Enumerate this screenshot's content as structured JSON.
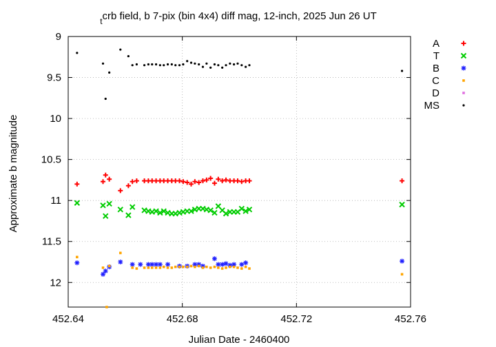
{
  "chart_data": {
    "type": "scatter",
    "title_sub": "t",
    "title_main": "crb field, b 7-pix (bin 4x4) diff mag, 12-inch, 2025 Jun 26 UT",
    "xlabel": "Julian Date - 2460400",
    "ylabel": "Approximate b magnitude",
    "xlim": [
      452.64,
      452.76
    ],
    "ylim": [
      12.3,
      9.0
    ],
    "y_inverted": true,
    "x_ticks": [
      "452.64",
      "452.68",
      "452.72",
      "452.76"
    ],
    "y_ticks": [
      "9",
      "9.5",
      "10",
      "10.5",
      "11",
      "11.5",
      "12"
    ],
    "grid": true,
    "legend_position": "outside-right",
    "series": [
      {
        "name": "A",
        "marker": "plus",
        "color": "#ff0000",
        "x": [
          452.6431,
          452.6522,
          452.6531,
          452.6544,
          452.6583,
          452.6611,
          452.6625,
          452.664,
          452.6667,
          452.6681,
          452.6694,
          452.6708,
          452.6722,
          452.6735,
          452.6749,
          452.6763,
          452.6776,
          452.679,
          452.6803,
          452.6817,
          452.6831,
          452.6844,
          452.6858,
          452.6872,
          452.6885,
          452.6899,
          452.6913,
          452.6926,
          452.694,
          452.6953,
          452.6967,
          452.6981,
          452.6994,
          452.7008,
          452.7022,
          452.7035,
          452.757
        ],
        "y": [
          10.8,
          10.77,
          10.69,
          10.74,
          10.88,
          10.82,
          10.77,
          10.76,
          10.76,
          10.76,
          10.76,
          10.76,
          10.76,
          10.76,
          10.76,
          10.76,
          10.76,
          10.76,
          10.77,
          10.78,
          10.8,
          10.77,
          10.78,
          10.76,
          10.75,
          10.73,
          10.79,
          10.74,
          10.76,
          10.75,
          10.76,
          10.76,
          10.76,
          10.77,
          10.76,
          10.76,
          10.76
        ]
      },
      {
        "name": "T",
        "marker": "cross",
        "color": "#00cc00",
        "x": [
          452.6431,
          452.6522,
          452.6531,
          452.6544,
          452.6583,
          452.6611,
          452.6625,
          452.6667,
          452.6681,
          452.6694,
          452.6708,
          452.6722,
          452.6735,
          452.6749,
          452.6763,
          452.6776,
          452.679,
          452.6803,
          452.6817,
          452.6831,
          452.6844,
          452.6858,
          452.6872,
          452.6885,
          452.6899,
          452.6913,
          452.6926,
          452.694,
          452.6953,
          452.6967,
          452.6981,
          452.6994,
          452.7008,
          452.7022,
          452.7035,
          452.757
        ],
        "y": [
          11.03,
          11.06,
          11.19,
          11.04,
          11.11,
          11.18,
          11.08,
          11.12,
          11.13,
          11.14,
          11.13,
          11.15,
          11.13,
          11.15,
          11.16,
          11.16,
          11.15,
          11.14,
          11.13,
          11.13,
          11.11,
          11.1,
          11.1,
          11.11,
          11.12,
          11.15,
          11.07,
          11.12,
          11.16,
          11.14,
          11.14,
          11.14,
          11.1,
          11.13,
          11.11,
          11.05
        ]
      },
      {
        "name": "B",
        "marker": "star",
        "color": "#2020ff",
        "x": [
          452.6431,
          452.6522,
          452.6531,
          452.6544,
          452.6583,
          452.6625,
          452.6653,
          452.6681,
          452.6694,
          452.6708,
          452.6722,
          452.6749,
          452.679,
          452.6817,
          452.6844,
          452.6858,
          452.6872,
          452.6913,
          452.6926,
          452.694,
          452.6953,
          452.6967,
          452.6981,
          452.7008,
          452.7022,
          452.757
        ],
        "y": [
          11.76,
          11.9,
          11.86,
          11.81,
          11.75,
          11.78,
          11.78,
          11.78,
          11.78,
          11.78,
          11.78,
          11.78,
          11.8,
          11.8,
          11.78,
          11.78,
          11.8,
          11.71,
          11.78,
          11.78,
          11.77,
          11.79,
          11.78,
          11.78,
          11.76,
          11.74
        ]
      },
      {
        "name": "C",
        "marker": "square",
        "color": "#ffa500",
        "x": [
          452.6431,
          452.6522,
          452.6535,
          452.6544,
          452.6583,
          452.6625,
          452.664,
          452.6667,
          452.6681,
          452.6694,
          452.6708,
          452.6722,
          452.6735,
          452.6749,
          452.6763,
          452.6776,
          452.679,
          452.6803,
          452.6817,
          452.6831,
          452.6844,
          452.6858,
          452.6872,
          452.6885,
          452.6899,
          452.6913,
          452.6926,
          452.694,
          452.6953,
          452.6967,
          452.6981,
          452.6994,
          452.7008,
          452.7022,
          452.7035,
          452.757
        ],
        "y": [
          11.69,
          11.82,
          12.3,
          11.8,
          11.64,
          11.82,
          11.83,
          11.82,
          11.82,
          11.82,
          11.82,
          11.82,
          11.81,
          11.82,
          11.82,
          11.81,
          11.81,
          11.81,
          11.81,
          11.8,
          11.81,
          11.8,
          11.82,
          11.81,
          11.82,
          11.81,
          11.82,
          11.83,
          11.82,
          11.81,
          11.81,
          11.82,
          11.83,
          11.81,
          11.83,
          11.9
        ]
      },
      {
        "name": "D",
        "marker": "square",
        "color": "#e070e0",
        "x": [],
        "y": []
      },
      {
        "name": "MS",
        "marker": "dot",
        "color": "#000000",
        "x": [
          452.6431,
          452.6522,
          452.6531,
          452.6544,
          452.6583,
          452.6611,
          452.6625,
          452.664,
          452.6667,
          452.6681,
          452.6694,
          452.6708,
          452.6722,
          452.6735,
          452.6749,
          452.6763,
          452.6776,
          452.679,
          452.6803,
          452.6817,
          452.6831,
          452.6844,
          452.6858,
          452.6872,
          452.6885,
          452.6899,
          452.6913,
          452.6926,
          452.694,
          452.6953,
          452.6967,
          452.6981,
          452.6994,
          452.7008,
          452.7022,
          452.7035,
          452.757
        ],
        "y": [
          9.2,
          9.33,
          9.76,
          9.44,
          9.16,
          9.24,
          9.35,
          9.34,
          9.35,
          9.34,
          9.34,
          9.34,
          9.35,
          9.35,
          9.34,
          9.34,
          9.35,
          9.35,
          9.34,
          9.3,
          9.32,
          9.33,
          9.34,
          9.37,
          9.33,
          9.38,
          9.34,
          9.35,
          9.38,
          9.35,
          9.33,
          9.34,
          9.33,
          9.35,
          9.37,
          9.35,
          9.42
        ]
      }
    ]
  }
}
